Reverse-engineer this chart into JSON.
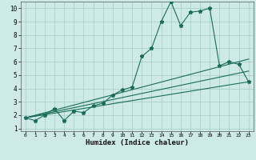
{
  "xlabel": "Humidex (Indice chaleur)",
  "bg_color": "#ceeae6",
  "grid_color": "#aacfcb",
  "line_color": "#1a6b5a",
  "xlim": [
    -0.5,
    23.5
  ],
  "ylim": [
    0.8,
    10.5
  ],
  "xticks": [
    0,
    1,
    2,
    3,
    4,
    5,
    6,
    7,
    8,
    9,
    10,
    11,
    12,
    13,
    14,
    15,
    16,
    17,
    18,
    19,
    20,
    21,
    22,
    23
  ],
  "yticks": [
    1,
    2,
    3,
    4,
    5,
    6,
    7,
    8,
    9,
    10
  ],
  "main_x": [
    0,
    1,
    2,
    3,
    4,
    5,
    6,
    7,
    8,
    9,
    10,
    11,
    12,
    13,
    14,
    15,
    16,
    17,
    18,
    19,
    20,
    21,
    22,
    23
  ],
  "main_y": [
    1.8,
    1.6,
    2.0,
    2.5,
    1.6,
    2.3,
    2.2,
    2.7,
    2.9,
    3.5,
    3.9,
    4.1,
    6.4,
    7.0,
    9.0,
    10.5,
    8.7,
    9.7,
    9.8,
    10.0,
    5.7,
    6.0,
    5.8,
    4.5
  ],
  "upper_line_x": [
    0,
    23
  ],
  "upper_line_y": [
    1.8,
    6.2
  ],
  "lower_line_x": [
    0,
    23
  ],
  "lower_line_y": [
    1.8,
    4.5
  ],
  "mid_line_x": [
    0,
    23
  ],
  "mid_line_y": [
    1.8,
    5.3
  ]
}
